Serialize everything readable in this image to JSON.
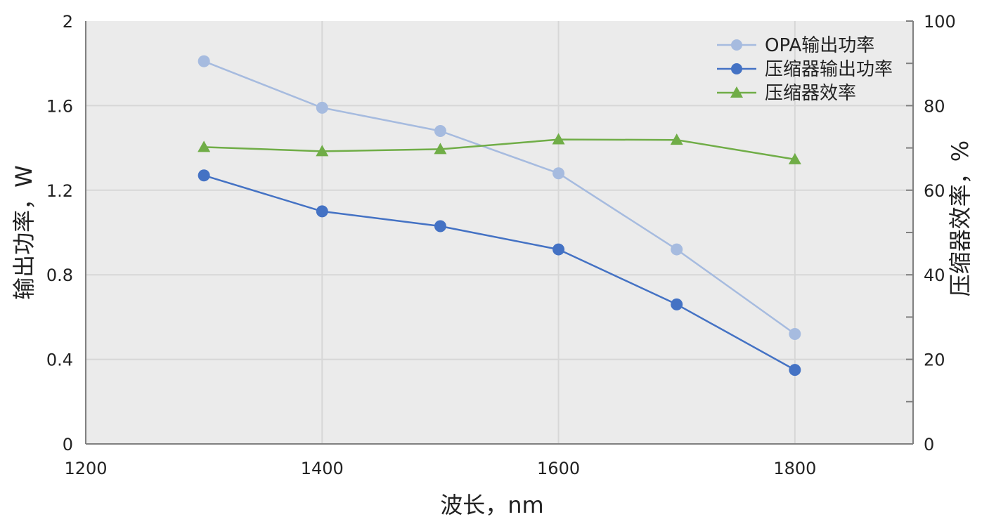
{
  "chart_data": {
    "type": "line",
    "title": "",
    "xlabel": "波长，nm",
    "ylabel": "输出功率，W",
    "y2label": "压缩器效率，%",
    "xlim": [
      1200,
      1900
    ],
    "ylim": [
      0,
      2
    ],
    "y2lim": [
      0,
      100
    ],
    "xticks": [
      "1200",
      "1400",
      "1600",
      "1800"
    ],
    "yticks": [
      "0",
      "0.4",
      "0.8",
      "1.2",
      "1.6",
      "2"
    ],
    "y2ticks": [
      "0",
      "20",
      "40",
      "60",
      "80",
      "100"
    ],
    "grid": true,
    "legend_position": "top-right",
    "x": [
      1300,
      1400,
      1500,
      1600,
      1700,
      1800
    ],
    "series": [
      {
        "name": "OPA输出功率",
        "axis": "left",
        "color": "#a6bbdf",
        "marker": "circle",
        "values": [
          1.81,
          1.59,
          1.48,
          1.28,
          0.92,
          0.52
        ]
      },
      {
        "name": "压缩器输出功率",
        "axis": "left",
        "color": "#4472c4",
        "marker": "circle",
        "values": [
          1.27,
          1.1,
          1.03,
          0.92,
          0.66,
          0.35
        ]
      },
      {
        "name": "压缩器效率",
        "axis": "right",
        "color": "#70ad47",
        "marker": "triangle",
        "values": [
          70.2,
          69.2,
          69.7,
          72.0,
          71.9,
          67.3
        ]
      }
    ]
  }
}
